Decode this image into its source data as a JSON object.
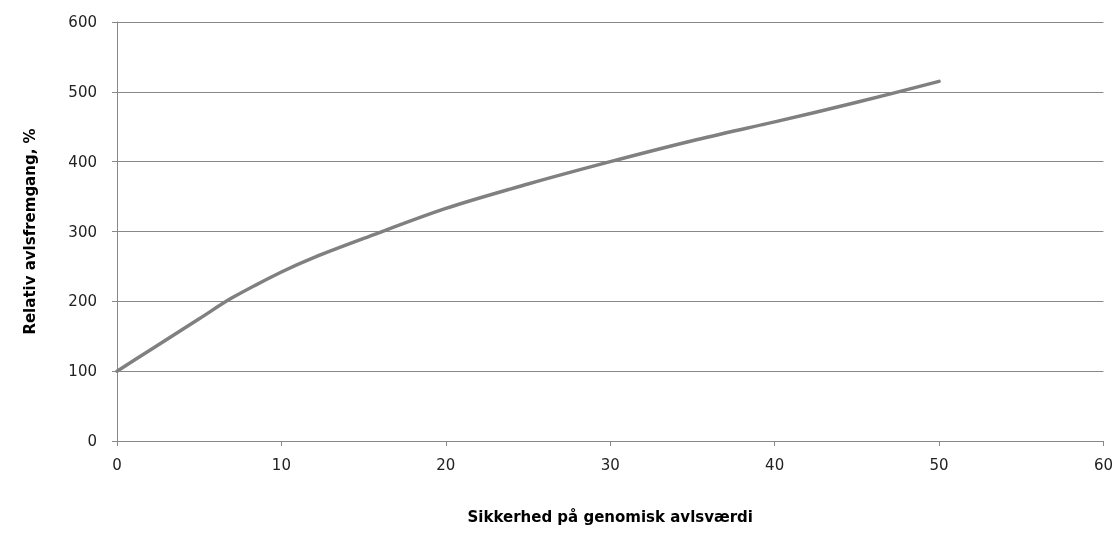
{
  "chart_data": {
    "type": "line",
    "xlabel": "Sikkerhed på genomisk avlsværdi",
    "ylabel": "Relativ avlsfremgang, %",
    "x": [
      0,
      2,
      5,
      7,
      10,
      12,
      15,
      20,
      25,
      30,
      35,
      40,
      45,
      50
    ],
    "series": [
      {
        "color": "#808080",
        "values": [
          100,
          130,
          175,
          205,
          242,
          263,
          290,
          333,
          368,
          400,
          430,
          457,
          485,
          515
        ]
      }
    ],
    "xlim": [
      0,
      60
    ],
    "xticks": [
      0,
      10,
      20,
      30,
      40,
      50,
      60
    ],
    "ylim": [
      0,
      600
    ],
    "yticks": [
      0,
      100,
      200,
      300,
      400,
      500,
      600
    ],
    "grid": "y",
    "marker": "none",
    "line_style": "solid"
  }
}
